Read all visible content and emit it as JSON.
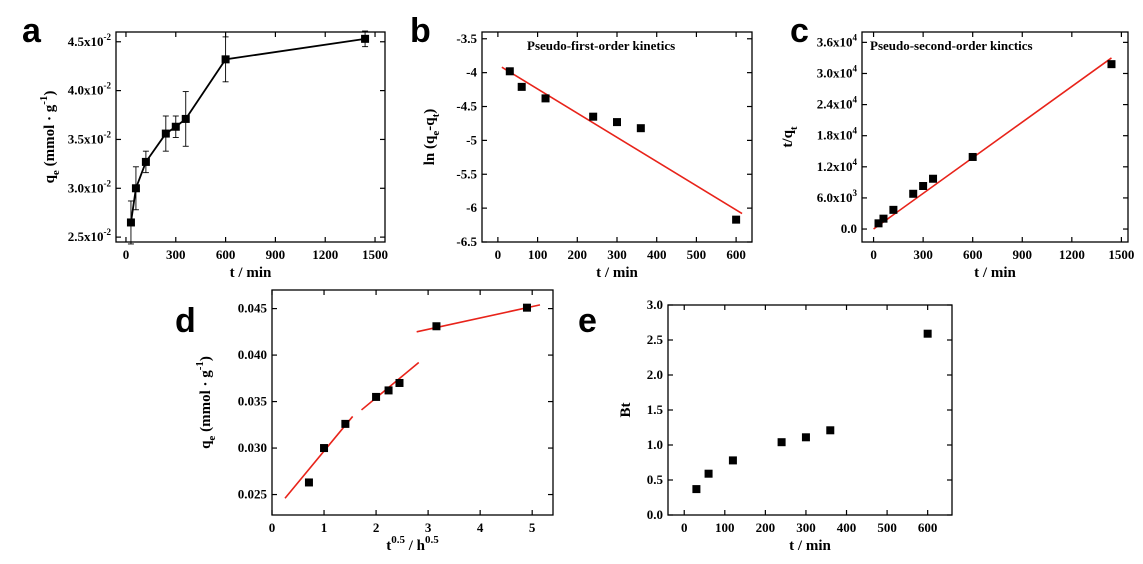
{
  "figure": {
    "panel_letters": [
      "a",
      "b",
      "c",
      "d",
      "e"
    ]
  },
  "chart_data": [
    {
      "id": "a",
      "type": "line",
      "title": "",
      "xlabel": "t / min",
      "ylabel": "qe (mmol · g-1)",
      "xlim": [
        -60,
        1560
      ],
      "ylim": [
        0.0245,
        0.046
      ],
      "xticks": [
        0,
        300,
        600,
        900,
        1200,
        1500
      ],
      "yticks": [
        0.025,
        0.03,
        0.035,
        0.04,
        0.045
      ],
      "ytick_labels": [
        "2.5x10-2",
        "3.0x10-2",
        "3.5x10-2",
        "4.0x10-2",
        "4.5x10-2"
      ],
      "grid": false,
      "series": [
        {
          "marker": "square",
          "color": "#000000",
          "x": [
            30,
            60,
            120,
            240,
            300,
            360,
            600,
            1440
          ],
          "y": [
            0.0265,
            0.03,
            0.0327,
            0.0356,
            0.0363,
            0.0371,
            0.0432,
            0.0453
          ],
          "yerr": [
            0.0022,
            0.0022,
            0.0011,
            0.0018,
            0.0011,
            0.0028,
            0.0023,
            0.0008
          ]
        }
      ]
    },
    {
      "id": "b",
      "type": "scatter",
      "title": "Pseudo-first-order kinetics",
      "xlabel": "t / min",
      "ylabel": "ln (qe-qt)",
      "xlim": [
        -40,
        640
      ],
      "ylim": [
        -6.5,
        -3.4
      ],
      "xticks": [
        0,
        100,
        200,
        300,
        400,
        500,
        600
      ],
      "yticks": [
        -6.5,
        -6.0,
        -5.5,
        -5.0,
        -4.5,
        -4.0,
        -3.5
      ],
      "grid": false,
      "series": [
        {
          "marker": "square",
          "color": "#000000",
          "x": [
            30,
            60,
            120,
            240,
            300,
            360,
            600
          ],
          "y": [
            -3.98,
            -4.21,
            -4.38,
            -4.65,
            -4.73,
            -4.82,
            -6.17
          ]
        }
      ],
      "fit_lines": [
        {
          "color": "#e8231a",
          "x": [
            10,
            615
          ],
          "y": [
            -3.92,
            -6.08
          ]
        }
      ]
    },
    {
      "id": "c",
      "type": "scatter",
      "title": "Pseudo-second-order kinctics",
      "xlabel": "t / min",
      "ylabel": "t/qt",
      "xlim": [
        -70,
        1540
      ],
      "ylim": [
        -2500,
        38000
      ],
      "xticks": [
        0,
        300,
        600,
        900,
        1200,
        1500
      ],
      "yticks": [
        0,
        6000,
        12000,
        18000,
        24000,
        30000,
        36000
      ],
      "ytick_labels": [
        "0.0",
        "6.0x10^3",
        "1.2x10^4",
        "1.8x10^4",
        "2.4x10^4",
        "3.0x10^4",
        "3.6x10^4"
      ],
      "grid": false,
      "series": [
        {
          "marker": "square",
          "color": "#000000",
          "x": [
            30,
            60,
            120,
            240,
            300,
            360,
            600,
            1440
          ],
          "y": [
            1100,
            2000,
            3700,
            6800,
            8300,
            9700,
            13900,
            31800
          ]
        }
      ],
      "fit_lines": [
        {
          "color": "#e8231a",
          "x": [
            0,
            1440
          ],
          "y": [
            0,
            33000
          ]
        }
      ]
    },
    {
      "id": "d",
      "type": "scatter",
      "title": "",
      "xlabel": "t0.5 / h0.5",
      "ylabel": "qe (mmol · g-1)",
      "xlim": [
        0,
        5.4
      ],
      "ylim": [
        0.0228,
        0.047
      ],
      "xticks": [
        0,
        1,
        2,
        3,
        4,
        5
      ],
      "yticks": [
        0.025,
        0.03,
        0.035,
        0.04,
        0.045
      ],
      "ytick_labels": [
        "0.025",
        "0.030",
        "0.035",
        "0.040",
        "0.045"
      ],
      "grid": false,
      "series": [
        {
          "marker": "square",
          "color": "#000000",
          "x": [
            0.71,
            1.0,
            1.41,
            2.0,
            2.24,
            2.45,
            3.16,
            4.9
          ],
          "y": [
            0.0263,
            0.03,
            0.0326,
            0.0355,
            0.0362,
            0.037,
            0.0431,
            0.0451
          ]
        }
      ],
      "fit_lines": [
        {
          "color": "#e8231a",
          "x": [
            0.25,
            1.55
          ],
          "y": [
            0.0246,
            0.0334
          ]
        },
        {
          "color": "#e8231a",
          "x": [
            1.72,
            2.82
          ],
          "y": [
            0.0341,
            0.0392
          ]
        },
        {
          "color": "#e8231a",
          "x": [
            2.78,
            5.15
          ],
          "y": [
            0.0425,
            0.0454
          ]
        }
      ]
    },
    {
      "id": "e",
      "type": "scatter",
      "title": "",
      "xlabel": "t / min",
      "ylabel": "Bt",
      "xlim": [
        -40,
        660
      ],
      "ylim": [
        0,
        3.0
      ],
      "xticks": [
        0,
        100,
        200,
        300,
        400,
        500,
        600
      ],
      "yticks": [
        0.0,
        0.5,
        1.0,
        1.5,
        2.0,
        2.5,
        3.0
      ],
      "ytick_labels": [
        "0.0",
        "0.5",
        "1.0",
        "1.5",
        "2.0",
        "2.5",
        "3.0"
      ],
      "grid": false,
      "series": [
        {
          "marker": "square",
          "color": "#000000",
          "x": [
            30,
            60,
            120,
            240,
            300,
            360,
            600
          ],
          "y": [
            0.37,
            0.59,
            0.78,
            1.04,
            1.11,
            1.21,
            2.59
          ]
        }
      ]
    }
  ]
}
